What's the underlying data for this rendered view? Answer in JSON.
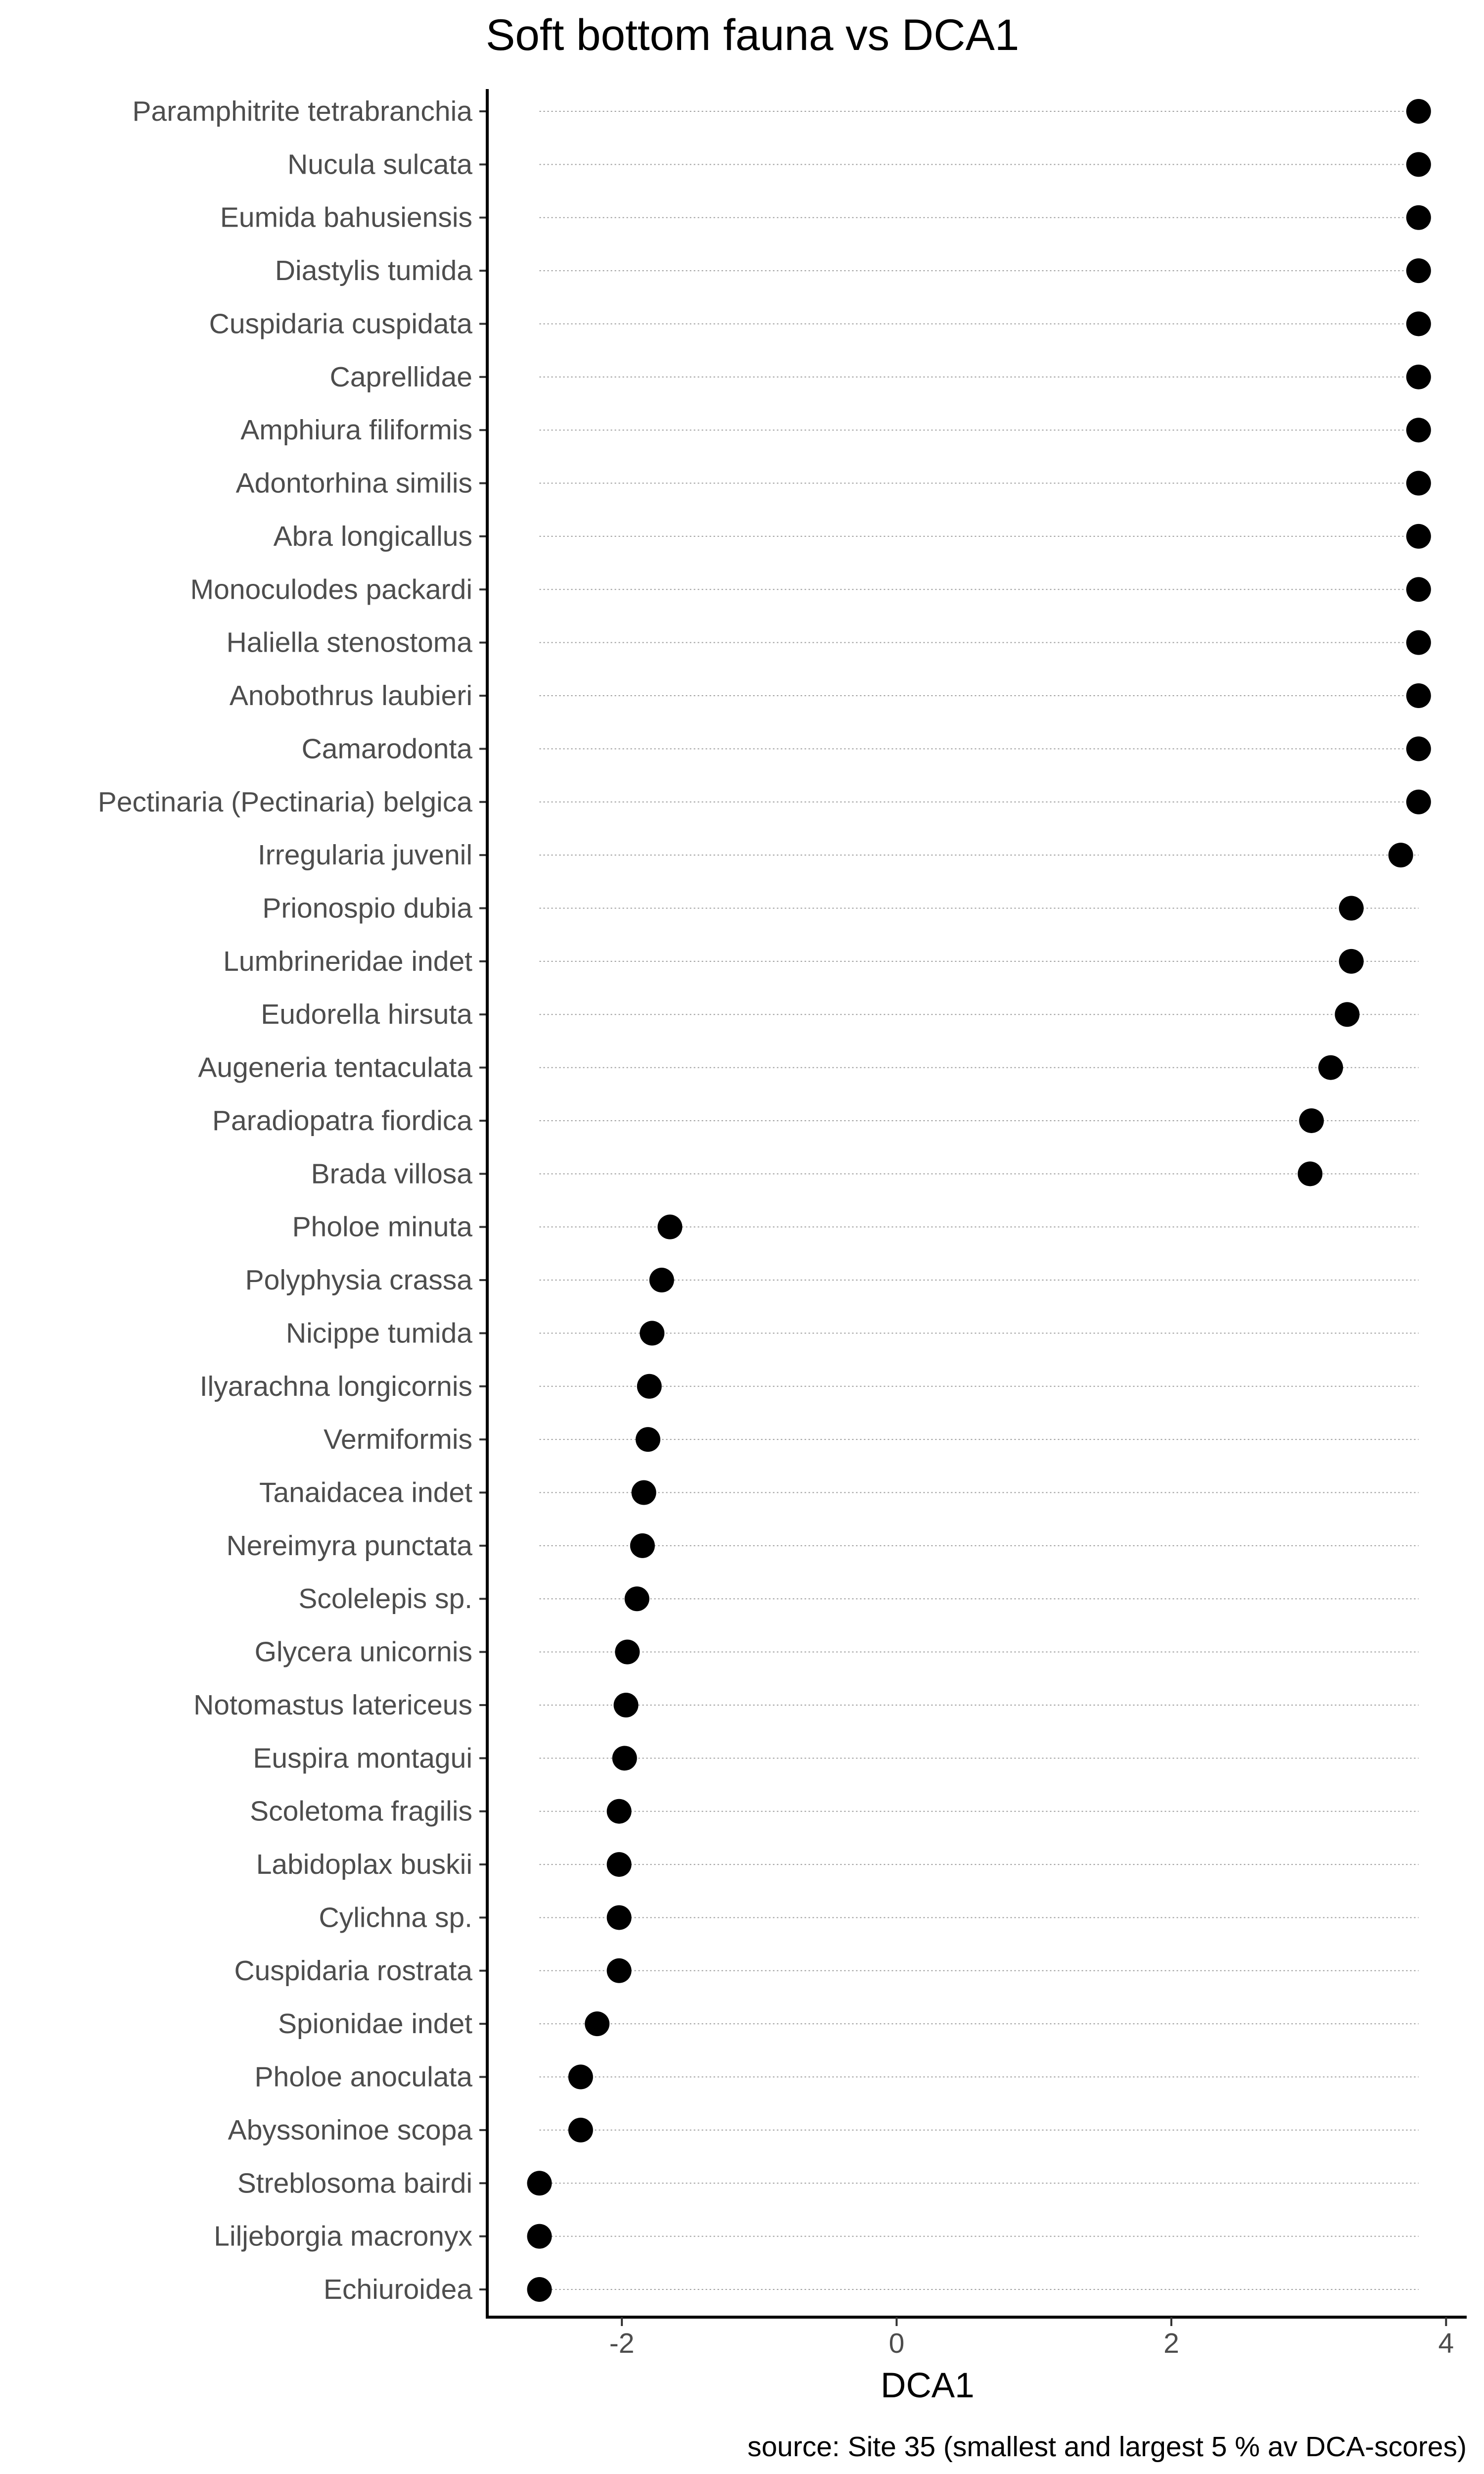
{
  "chart_data": {
    "type": "scatter",
    "title": "Soft bottom fauna vs DCA1",
    "xlabel": "DCA1",
    "ylabel": "",
    "caption": "source: Site 35 (smallest and largest 5 % av DCA-scores)",
    "xlim": [
      -2.98,
      4.15
    ],
    "xticks": [
      -2,
      0,
      2,
      4
    ],
    "xtick_labels": [
      "-2",
      "0",
      "2",
      "4"
    ],
    "grid": "dotted horizontal guide lines per category",
    "point_color": "#000000",
    "categories": [
      "Paramphitrite tetrabranchia",
      "Nucula sulcata",
      "Eumida bahusiensis",
      "Diastylis tumida",
      "Cuspidaria cuspidata",
      "Caprellidae",
      "Amphiura filiformis",
      "Adontorhina similis",
      "Abra longicallus",
      "Monoculodes packardi",
      "Haliella stenostoma",
      "Anobothrus laubieri",
      "Camarodonta",
      "Pectinaria (Pectinaria) belgica",
      "Irregularia juvenil",
      "Prionospio dubia",
      "Lumbrineridae indet",
      "Eudorella hirsuta",
      "Augeneria tentaculata",
      "Paradiopatra fiordica",
      "Brada villosa",
      "Pholoe minuta",
      "Polyphysia crassa",
      "Nicippe tumida",
      "Ilyarachna longicornis",
      "Vermiformis",
      "Tanaidacea indet",
      "Nereimyra punctata",
      "Scolelepis sp.",
      "Glycera unicornis",
      "Notomastus latericeus",
      "Euspira montagui",
      "Scoletoma fragilis",
      "Labidoplax buskii",
      "Cylichna sp.",
      "Cuspidaria rostrata",
      "Spionidae indet",
      "Pholoe anoculata",
      "Abyssoninoe scopa",
      "Streblosoma bairdi",
      "Liljeborgia macronyx",
      "Echiuroidea"
    ],
    "values": [
      3.8,
      3.8,
      3.8,
      3.8,
      3.8,
      3.8,
      3.8,
      3.8,
      3.8,
      3.8,
      3.8,
      3.8,
      3.8,
      3.8,
      3.67,
      3.31,
      3.31,
      3.28,
      3.16,
      3.02,
      3.01,
      -1.65,
      -1.71,
      -1.78,
      -1.8,
      -1.81,
      -1.84,
      -1.85,
      -1.89,
      -1.96,
      -1.97,
      -1.98,
      -2.02,
      -2.02,
      -2.02,
      -2.02,
      -2.18,
      -2.3,
      -2.3,
      -2.6,
      -2.6,
      -2.6
    ]
  }
}
